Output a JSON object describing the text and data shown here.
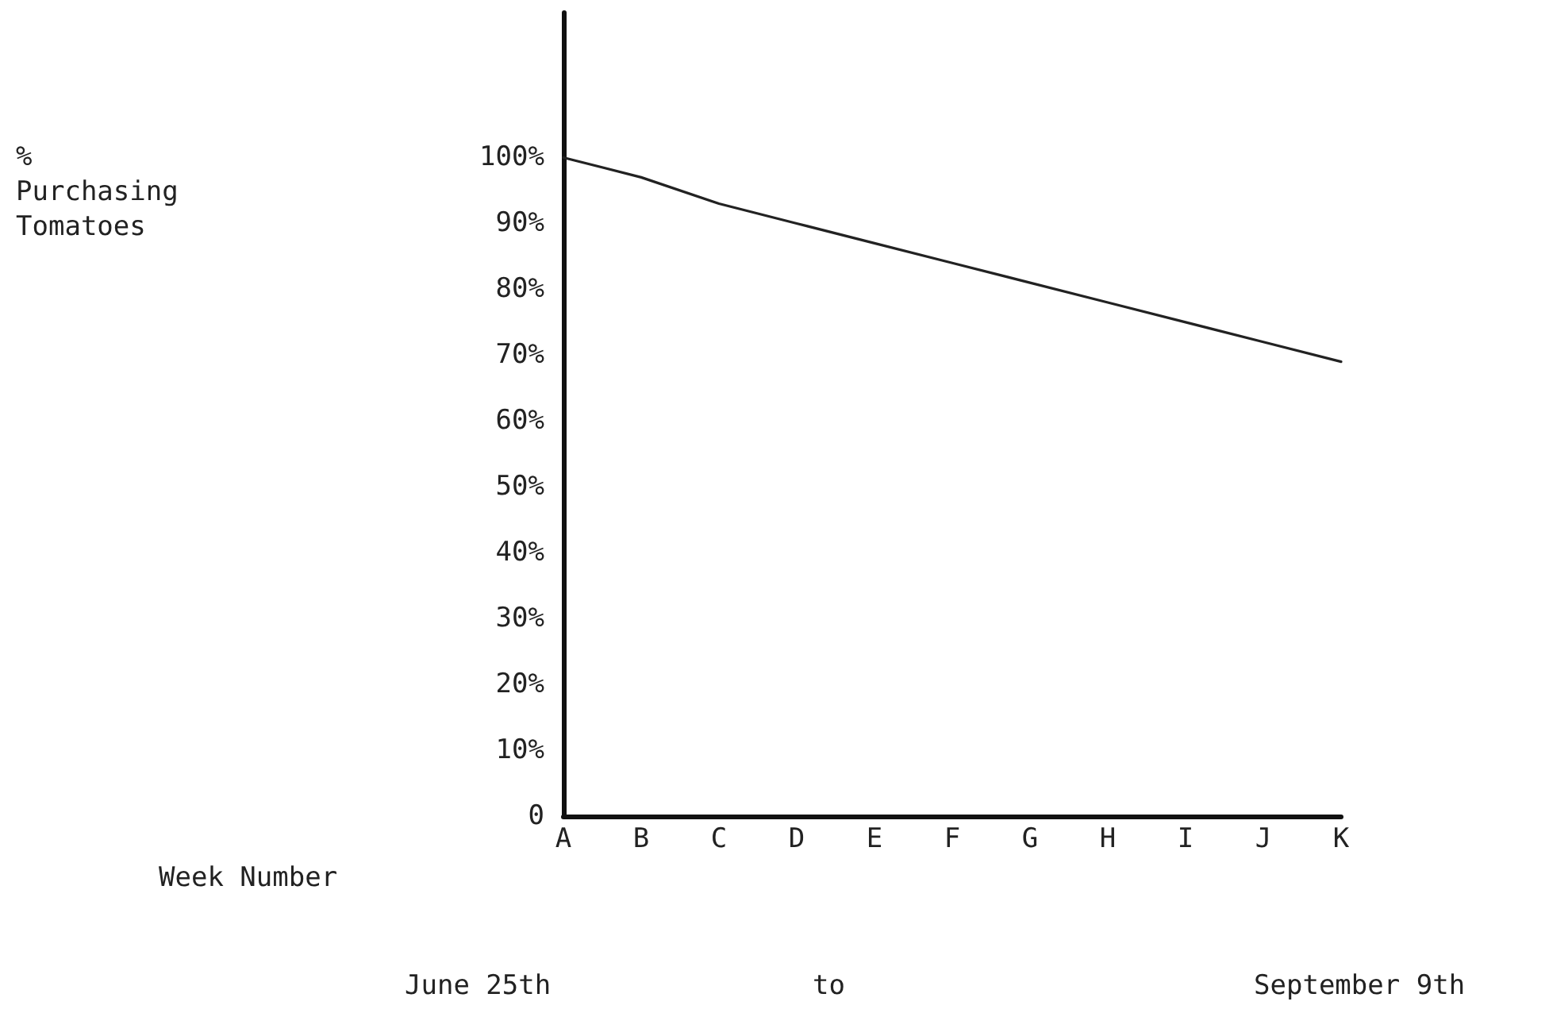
{
  "chart_data": {
    "type": "line",
    "annotations": [
      "%\nPurchasing\nTomatoes",
      "Week Number",
      "June 25th",
      "to",
      "September 9th"
    ],
    "categories": [
      "A",
      "B",
      "C",
      "D",
      "E",
      "F",
      "G",
      "H",
      "I",
      "J",
      "K"
    ],
    "series": [
      {
        "color": "#222222",
        "values": [
          100,
          97,
          93,
          90,
          87,
          84,
          81,
          78,
          75,
          72,
          69
        ]
      }
    ],
    "ylim": [
      0,
      122
    ],
    "yticks": [
      {
        "value": 0,
        "label": "0"
      },
      {
        "value": 10,
        "label": "10%"
      },
      {
        "value": 20,
        "label": "20%"
      },
      {
        "value": 30,
        "label": "30%"
      },
      {
        "value": 40,
        "label": "40%"
      },
      {
        "value": 50,
        "label": "50%"
      },
      {
        "value": 60,
        "label": "60%"
      },
      {
        "value": 70,
        "label": "70%"
      },
      {
        "value": 80,
        "label": "80%"
      },
      {
        "value": 90,
        "label": "90%"
      },
      {
        "value": 100,
        "label": "100%"
      }
    ],
    "grid": false,
    "marker": "none",
    "line_style": "solid"
  }
}
